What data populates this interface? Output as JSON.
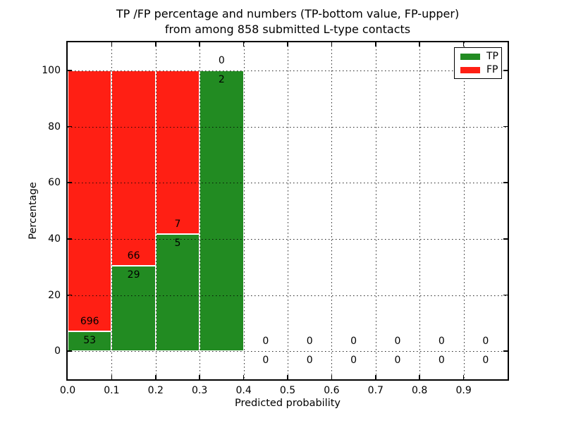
{
  "title": {
    "line1": "TP /FP percentage and numbers (TP-bottom value, FP-upper)",
    "line2": "from among 858 submitted L-type contacts"
  },
  "legend": {
    "items": [
      {
        "label": "TP",
        "color": "#228b22"
      },
      {
        "label": "FP",
        "color": "#ff1f14"
      }
    ]
  },
  "colors": {
    "tp": "#228b22",
    "fp": "#ff1f14",
    "grid": "#000000",
    "text": "#000000",
    "background": "#ffffff"
  },
  "chart_data": {
    "type": "bar",
    "stacked": true,
    "title": "TP /FP percentage and numbers (TP-bottom value, FP-upper) from among 858 submitted L-type contacts",
    "xlabel": "Predicted probability",
    "ylabel": "Percentage",
    "xlim": [
      0.0,
      1.0
    ],
    "ylim": [
      -10,
      110
    ],
    "xticks": [
      "0.0",
      "0.1",
      "0.2",
      "0.3",
      "0.4",
      "0.5",
      "0.6",
      "0.7",
      "0.8",
      "0.9"
    ],
    "yticks": [
      0,
      20,
      40,
      60,
      80,
      100
    ],
    "grid": true,
    "grid_style": "dotted",
    "legend_position": "upper right",
    "total_submitted": 858,
    "categories": [
      "0.0-0.1",
      "0.1-0.2",
      "0.2-0.3",
      "0.3-0.4",
      "0.4-0.5",
      "0.5-0.6",
      "0.6-0.7",
      "0.7-0.8",
      "0.8-0.9",
      "0.9-1.0"
    ],
    "bins": [
      {
        "range": [
          0.0,
          0.1
        ],
        "tp": 53,
        "fp": 696,
        "tp_pct": 7.08,
        "fp_pct": 92.92
      },
      {
        "range": [
          0.1,
          0.2
        ],
        "tp": 29,
        "fp": 66,
        "tp_pct": 30.53,
        "fp_pct": 69.47
      },
      {
        "range": [
          0.2,
          0.3
        ],
        "tp": 5,
        "fp": 7,
        "tp_pct": 41.67,
        "fp_pct": 58.33
      },
      {
        "range": [
          0.3,
          0.4
        ],
        "tp": 2,
        "fp": 0,
        "tp_pct": 100.0,
        "fp_pct": 0.0
      },
      {
        "range": [
          0.4,
          0.5
        ],
        "tp": 0,
        "fp": 0,
        "tp_pct": 0.0,
        "fp_pct": 0.0
      },
      {
        "range": [
          0.5,
          0.6
        ],
        "tp": 0,
        "fp": 0,
        "tp_pct": 0.0,
        "fp_pct": 0.0
      },
      {
        "range": [
          0.6,
          0.7
        ],
        "tp": 0,
        "fp": 0,
        "tp_pct": 0.0,
        "fp_pct": 0.0
      },
      {
        "range": [
          0.7,
          0.8
        ],
        "tp": 0,
        "fp": 0,
        "tp_pct": 0.0,
        "fp_pct": 0.0
      },
      {
        "range": [
          0.8,
          0.9
        ],
        "tp": 0,
        "fp": 0,
        "tp_pct": 0.0,
        "fp_pct": 0.0
      },
      {
        "range": [
          0.9,
          1.0
        ],
        "tp": 0,
        "fp": 0,
        "tp_pct": 0.0,
        "fp_pct": 0.0
      }
    ],
    "series": [
      {
        "name": "TP",
        "color": "#228b22",
        "counts": [
          53,
          29,
          5,
          2,
          0,
          0,
          0,
          0,
          0,
          0
        ]
      },
      {
        "name": "FP",
        "color": "#ff1f14",
        "counts": [
          696,
          66,
          7,
          0,
          0,
          0,
          0,
          0,
          0,
          0
        ]
      }
    ]
  }
}
